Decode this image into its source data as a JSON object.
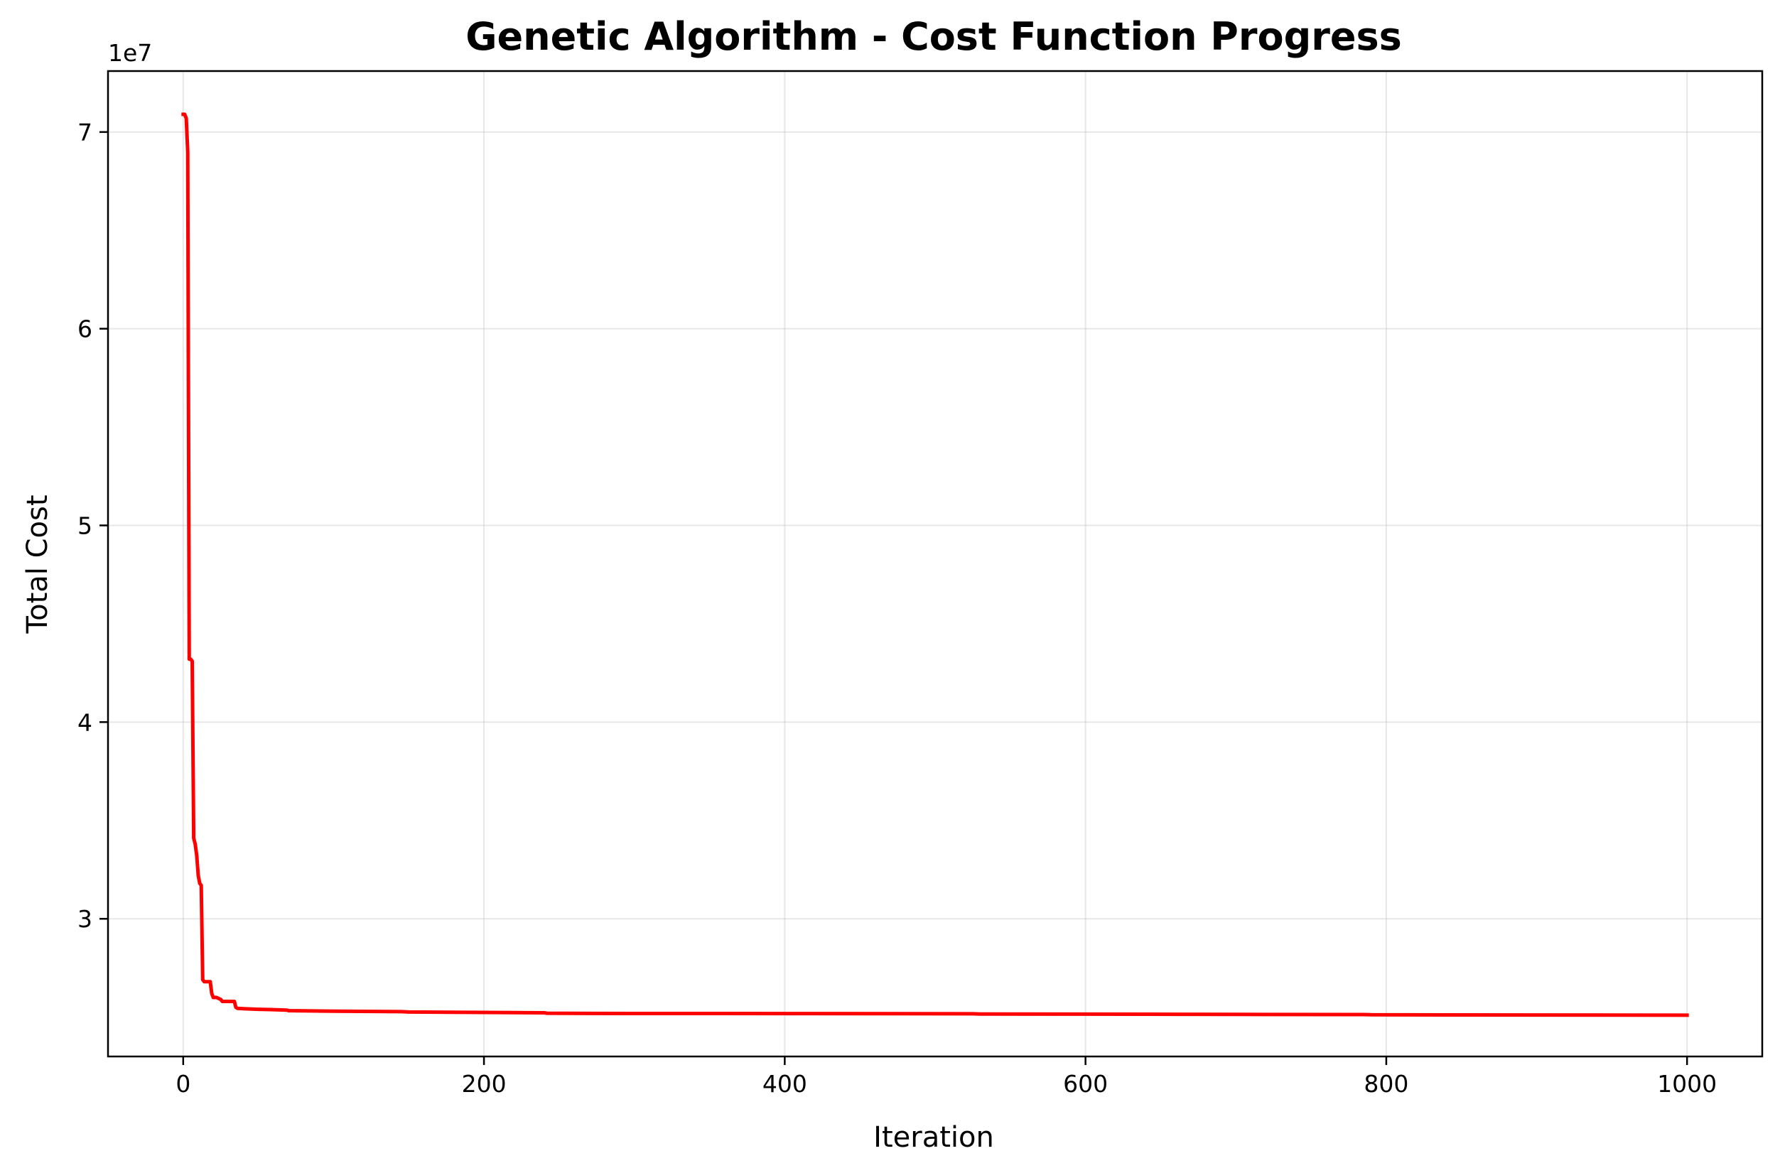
{
  "chart_data": {
    "type": "line",
    "title": "Genetic Algorithm - Cost Function Progress",
    "xlabel": "Iteration",
    "ylabel": "Total Cost",
    "y_offset_text": "1e7",
    "xlim": [
      -50,
      1050
    ],
    "ylim": [
      23000000,
      73100000
    ],
    "xticks": [
      0,
      200,
      400,
      600,
      800,
      1000
    ],
    "xtick_labels": [
      "0",
      "200",
      "400",
      "600",
      "800",
      "1000"
    ],
    "yticks": [
      30000000,
      40000000,
      50000000,
      60000000,
      70000000
    ],
    "ytick_labels": [
      "3",
      "4",
      "5",
      "6",
      "7"
    ],
    "grid": true,
    "series": [
      {
        "color": "#ff0000",
        "x": [
          0,
          1,
          2,
          3,
          4,
          5,
          6,
          7,
          8,
          9,
          10,
          11,
          12,
          13,
          14,
          15,
          16,
          18,
          19,
          20,
          22,
          25,
          26,
          30,
          33,
          34,
          35,
          36,
          40,
          50,
          60,
          69,
          70,
          100,
          145,
          150,
          200,
          240,
          242,
          270,
          400,
          525,
          530,
          640,
          700,
          785,
          790,
          1000
        ],
        "y": [
          70900000,
          70900000,
          70700000,
          69000000,
          43200000,
          43200000,
          43100000,
          34100000,
          33800000,
          33200000,
          32200000,
          31800000,
          31700000,
          26900000,
          26800000,
          26800000,
          26800000,
          26800000,
          26200000,
          26000000,
          26000000,
          25900000,
          25800000,
          25800000,
          25800000,
          25800000,
          25500000,
          25450000,
          25430000,
          25400000,
          25380000,
          25360000,
          25330000,
          25300000,
          25280000,
          25260000,
          25240000,
          25220000,
          25200000,
          25190000,
          25180000,
          25170000,
          25160000,
          25150000,
          25140000,
          25130000,
          25120000,
          25100000
        ]
      }
    ]
  }
}
